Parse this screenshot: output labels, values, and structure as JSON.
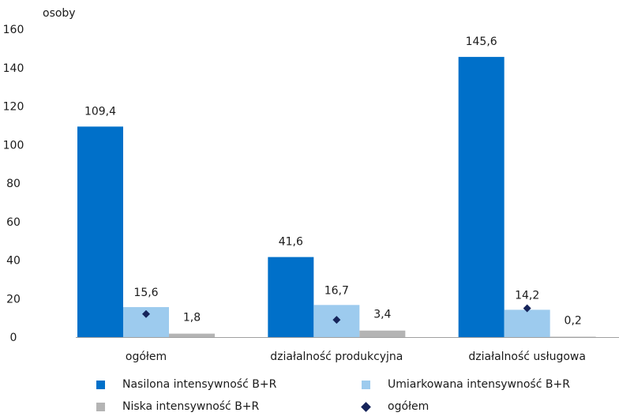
{
  "chart_data": {
    "type": "bar",
    "ylabel": "osoby",
    "ylim": [
      0,
      160
    ],
    "yticks": [
      "0",
      "20",
      "40",
      "60",
      "80",
      "100",
      "120",
      "140",
      "160"
    ],
    "categories": [
      "ogółem",
      "działalność produkcyjna",
      "działalność usługowa"
    ],
    "series": [
      {
        "name": "Nasilona intensywność B+R",
        "color": "#0070c9",
        "values": [
          109.4,
          41.6,
          145.6
        ],
        "labels": [
          "109,4",
          "41,6",
          "145,6"
        ]
      },
      {
        "name": "Umiarkowana intensywność B+R",
        "color": "#9dcbee",
        "values": [
          15.6,
          16.7,
          14.2
        ],
        "labels": [
          "15,6",
          "16,7",
          "14,2"
        ]
      },
      {
        "name": "Niska intensywność B+R",
        "color": "#b4b4b4",
        "values": [
          1.8,
          3.4,
          0.2
        ],
        "labels": [
          "1,8",
          "3,4",
          "0,2"
        ]
      }
    ],
    "markers": {
      "name": "ogółem",
      "color": "#16245a",
      "values": [
        12.0,
        9.0,
        15.0
      ]
    },
    "grid": false,
    "legend_position": "bottom"
  }
}
